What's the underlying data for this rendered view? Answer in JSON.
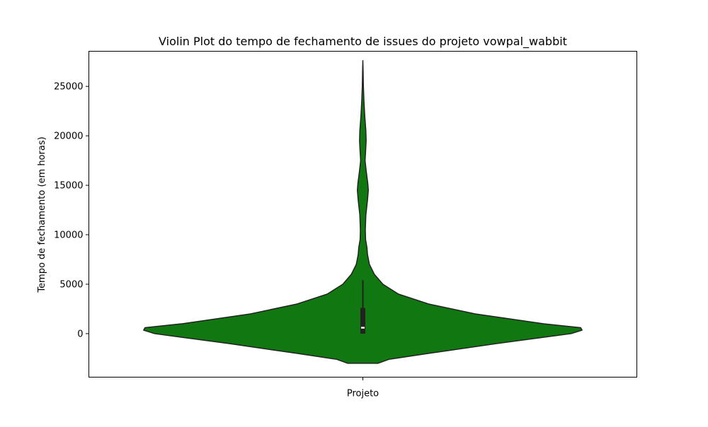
{
  "chart_data": {
    "type": "violin",
    "title": "Violin Plot do tempo de fechamento de issues do projeto vowpal_wabbit",
    "xlabel": "",
    "ylabel": "Tempo de fechamento (em horas)",
    "categories": [
      "Projeto"
    ],
    "ylim": [
      -4400,
      28550
    ],
    "yticks": [
      0,
      5000,
      10000,
      15000,
      20000,
      25000
    ],
    "grid": false,
    "legend": "none",
    "colors": {
      "violin_fill": "#117711",
      "outline": "#222222",
      "box": "#222222",
      "median": "#ffffff"
    },
    "density_profile": {
      "y": [
        -3000,
        -2600,
        -2000,
        -1000,
        0,
        350,
        600,
        1000,
        2000,
        3000,
        4000,
        5000,
        6000,
        7000,
        8000,
        8700,
        9500,
        10500,
        12000,
        13500,
        14500,
        15200,
        16500,
        17500,
        18400,
        19500,
        20500,
        22000,
        23500,
        25000,
        26500,
        27600
      ],
      "half_width": [
        0.055,
        0.095,
        0.24,
        0.49,
        0.76,
        0.8,
        0.795,
        0.66,
        0.41,
        0.24,
        0.13,
        0.073,
        0.042,
        0.024,
        0.017,
        0.015,
        0.01,
        0.009,
        0.011,
        0.017,
        0.02,
        0.018,
        0.012,
        0.008,
        0.01,
        0.012,
        0.011,
        0.007,
        0.004,
        0.002,
        0.001,
        0.0
      ]
    },
    "box": {
      "q1": 0,
      "median": 600,
      "q3": 2600,
      "whisker_low": 0,
      "whisker_high": 5400
    }
  }
}
